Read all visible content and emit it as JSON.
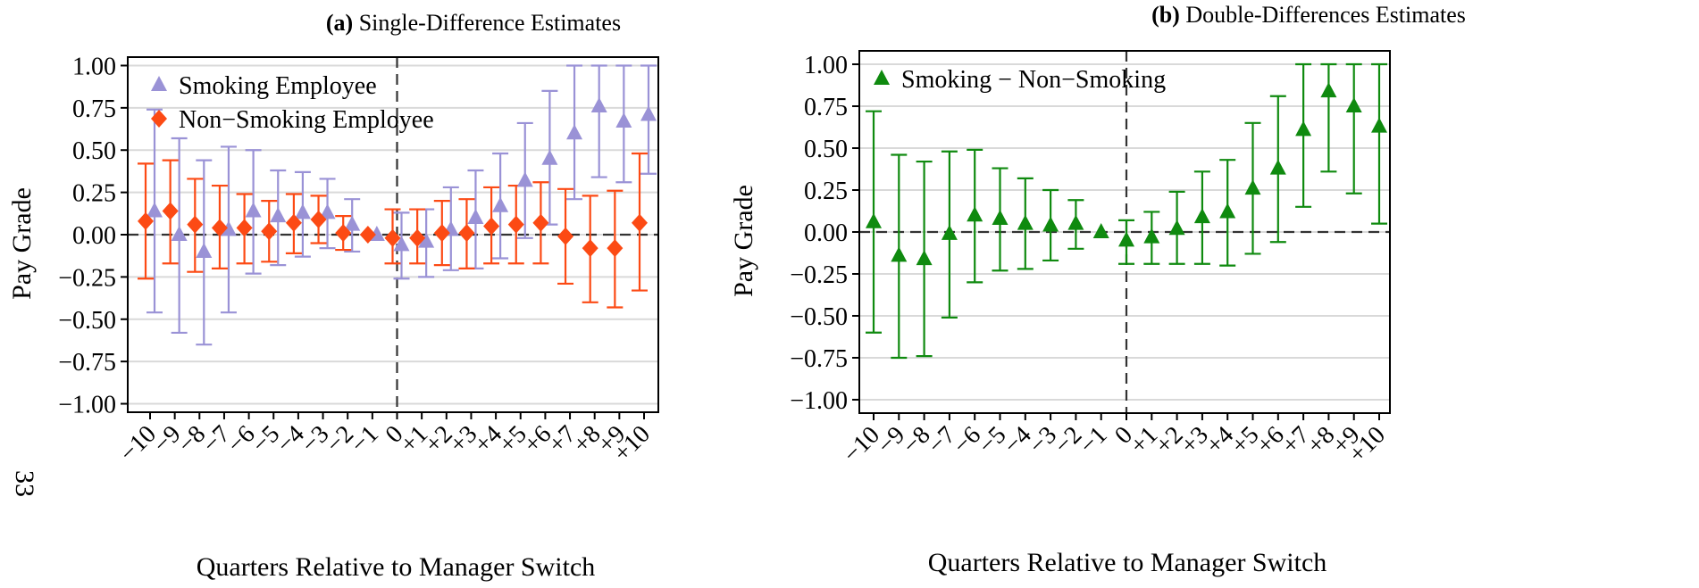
{
  "page_number": "33",
  "chart_data": [
    {
      "type": "scatter",
      "panel_label": "(a)",
      "title": "Single-Difference Estimates",
      "xlabel": "Quarters Relative to Manager Switch",
      "ylabel": "Pay Grade",
      "ylim": [
        -1.05,
        1.05
      ],
      "yticks": [
        "1.00",
        "0.75",
        "0.50",
        "0.25",
        "0.00",
        "−0.25",
        "−0.50",
        "−0.75",
        "−1.00"
      ],
      "categories": [
        "−10",
        "−9",
        "−8",
        "−7",
        "−6",
        "−5",
        "−4",
        "−3",
        "−2",
        "−1",
        "0",
        "+1",
        "+2",
        "+3",
        "+4",
        "+5",
        "+6",
        "+7",
        "+8",
        "+9",
        "+10"
      ],
      "grid": true,
      "legend_position": "top-left",
      "event_line_at": "0",
      "series": [
        {
          "name": "Smoking Employee",
          "marker": "triangle",
          "color": "#9a92d6",
          "values": [
            0.14,
            0.0,
            -0.1,
            0.03,
            0.14,
            0.11,
            0.13,
            0.13,
            0.06,
            0.0,
            -0.06,
            -0.04,
            0.03,
            0.1,
            0.17,
            0.32,
            0.45,
            0.6,
            0.76,
            0.67,
            0.71
          ],
          "lower": [
            -0.46,
            -0.58,
            -0.65,
            -0.46,
            -0.23,
            -0.18,
            -0.13,
            -0.08,
            -0.1,
            0.0,
            -0.26,
            -0.25,
            -0.21,
            -0.2,
            -0.14,
            -0.02,
            0.06,
            0.21,
            0.34,
            0.31,
            0.36
          ],
          "upper": [
            0.74,
            0.57,
            0.44,
            0.52,
            0.5,
            0.38,
            0.37,
            0.33,
            0.21,
            0.0,
            0.13,
            0.15,
            0.28,
            0.38,
            0.48,
            0.66,
            0.85,
            1.0,
            1.0,
            1.0,
            1.0
          ]
        },
        {
          "name": "Non−Smoking Employee",
          "marker": "diamond",
          "color": "#fc4a14",
          "values": [
            0.08,
            0.14,
            0.06,
            0.04,
            0.04,
            0.02,
            0.07,
            0.09,
            0.01,
            0.0,
            -0.02,
            -0.02,
            0.01,
            0.01,
            0.05,
            0.06,
            0.07,
            -0.01,
            -0.08,
            -0.08,
            0.07
          ],
          "lower": [
            -0.26,
            -0.17,
            -0.22,
            -0.2,
            -0.17,
            -0.16,
            -0.11,
            -0.05,
            -0.09,
            0.0,
            -0.17,
            -0.17,
            -0.18,
            -0.2,
            -0.17,
            -0.17,
            -0.17,
            -0.29,
            -0.4,
            -0.43,
            -0.33
          ],
          "upper": [
            0.42,
            0.44,
            0.33,
            0.29,
            0.24,
            0.2,
            0.24,
            0.23,
            0.11,
            0.0,
            0.15,
            0.15,
            0.2,
            0.21,
            0.28,
            0.29,
            0.31,
            0.27,
            0.23,
            0.26,
            0.48
          ]
        }
      ]
    },
    {
      "type": "scatter",
      "panel_label": "(b)",
      "title": "Double-Differences Estimates",
      "xlabel": "Quarters Relative to Manager Switch",
      "ylabel": "Pay Grade",
      "ylim": [
        -1.08,
        1.08
      ],
      "yticks": [
        "1.00",
        "0.75",
        "0.50",
        "0.25",
        "0.00",
        "−0.25",
        "−0.50",
        "−0.75",
        "−1.00"
      ],
      "categories": [
        "−10",
        "−9",
        "−8",
        "−7",
        "−6",
        "−5",
        "−4",
        "−3",
        "−2",
        "−1",
        "0",
        "+1",
        "+2",
        "+3",
        "+4",
        "+5",
        "+6",
        "+7",
        "+8",
        "+9",
        "+10"
      ],
      "grid": true,
      "legend_position": "top-left",
      "event_line_at": "0",
      "series": [
        {
          "name": "Smoking − Non−Smoking",
          "marker": "triangle",
          "color": "#0f8a0f",
          "values": [
            0.06,
            -0.14,
            -0.16,
            -0.01,
            0.1,
            0.08,
            0.05,
            0.04,
            0.05,
            0.0,
            -0.05,
            -0.03,
            0.02,
            0.09,
            0.12,
            0.26,
            0.38,
            0.61,
            0.84,
            0.75,
            0.63
          ],
          "lower": [
            -0.6,
            -0.75,
            -0.74,
            -0.51,
            -0.3,
            -0.23,
            -0.22,
            -0.17,
            -0.1,
            0.0,
            -0.19,
            -0.19,
            -0.19,
            -0.19,
            -0.2,
            -0.13,
            -0.06,
            0.15,
            0.36,
            0.23,
            0.05
          ],
          "upper": [
            0.72,
            0.46,
            0.42,
            0.48,
            0.49,
            0.38,
            0.32,
            0.25,
            0.19,
            0.0,
            0.07,
            0.12,
            0.24,
            0.36,
            0.43,
            0.65,
            0.81,
            1.0,
            1.0,
            1.0,
            1.0
          ]
        }
      ]
    }
  ]
}
